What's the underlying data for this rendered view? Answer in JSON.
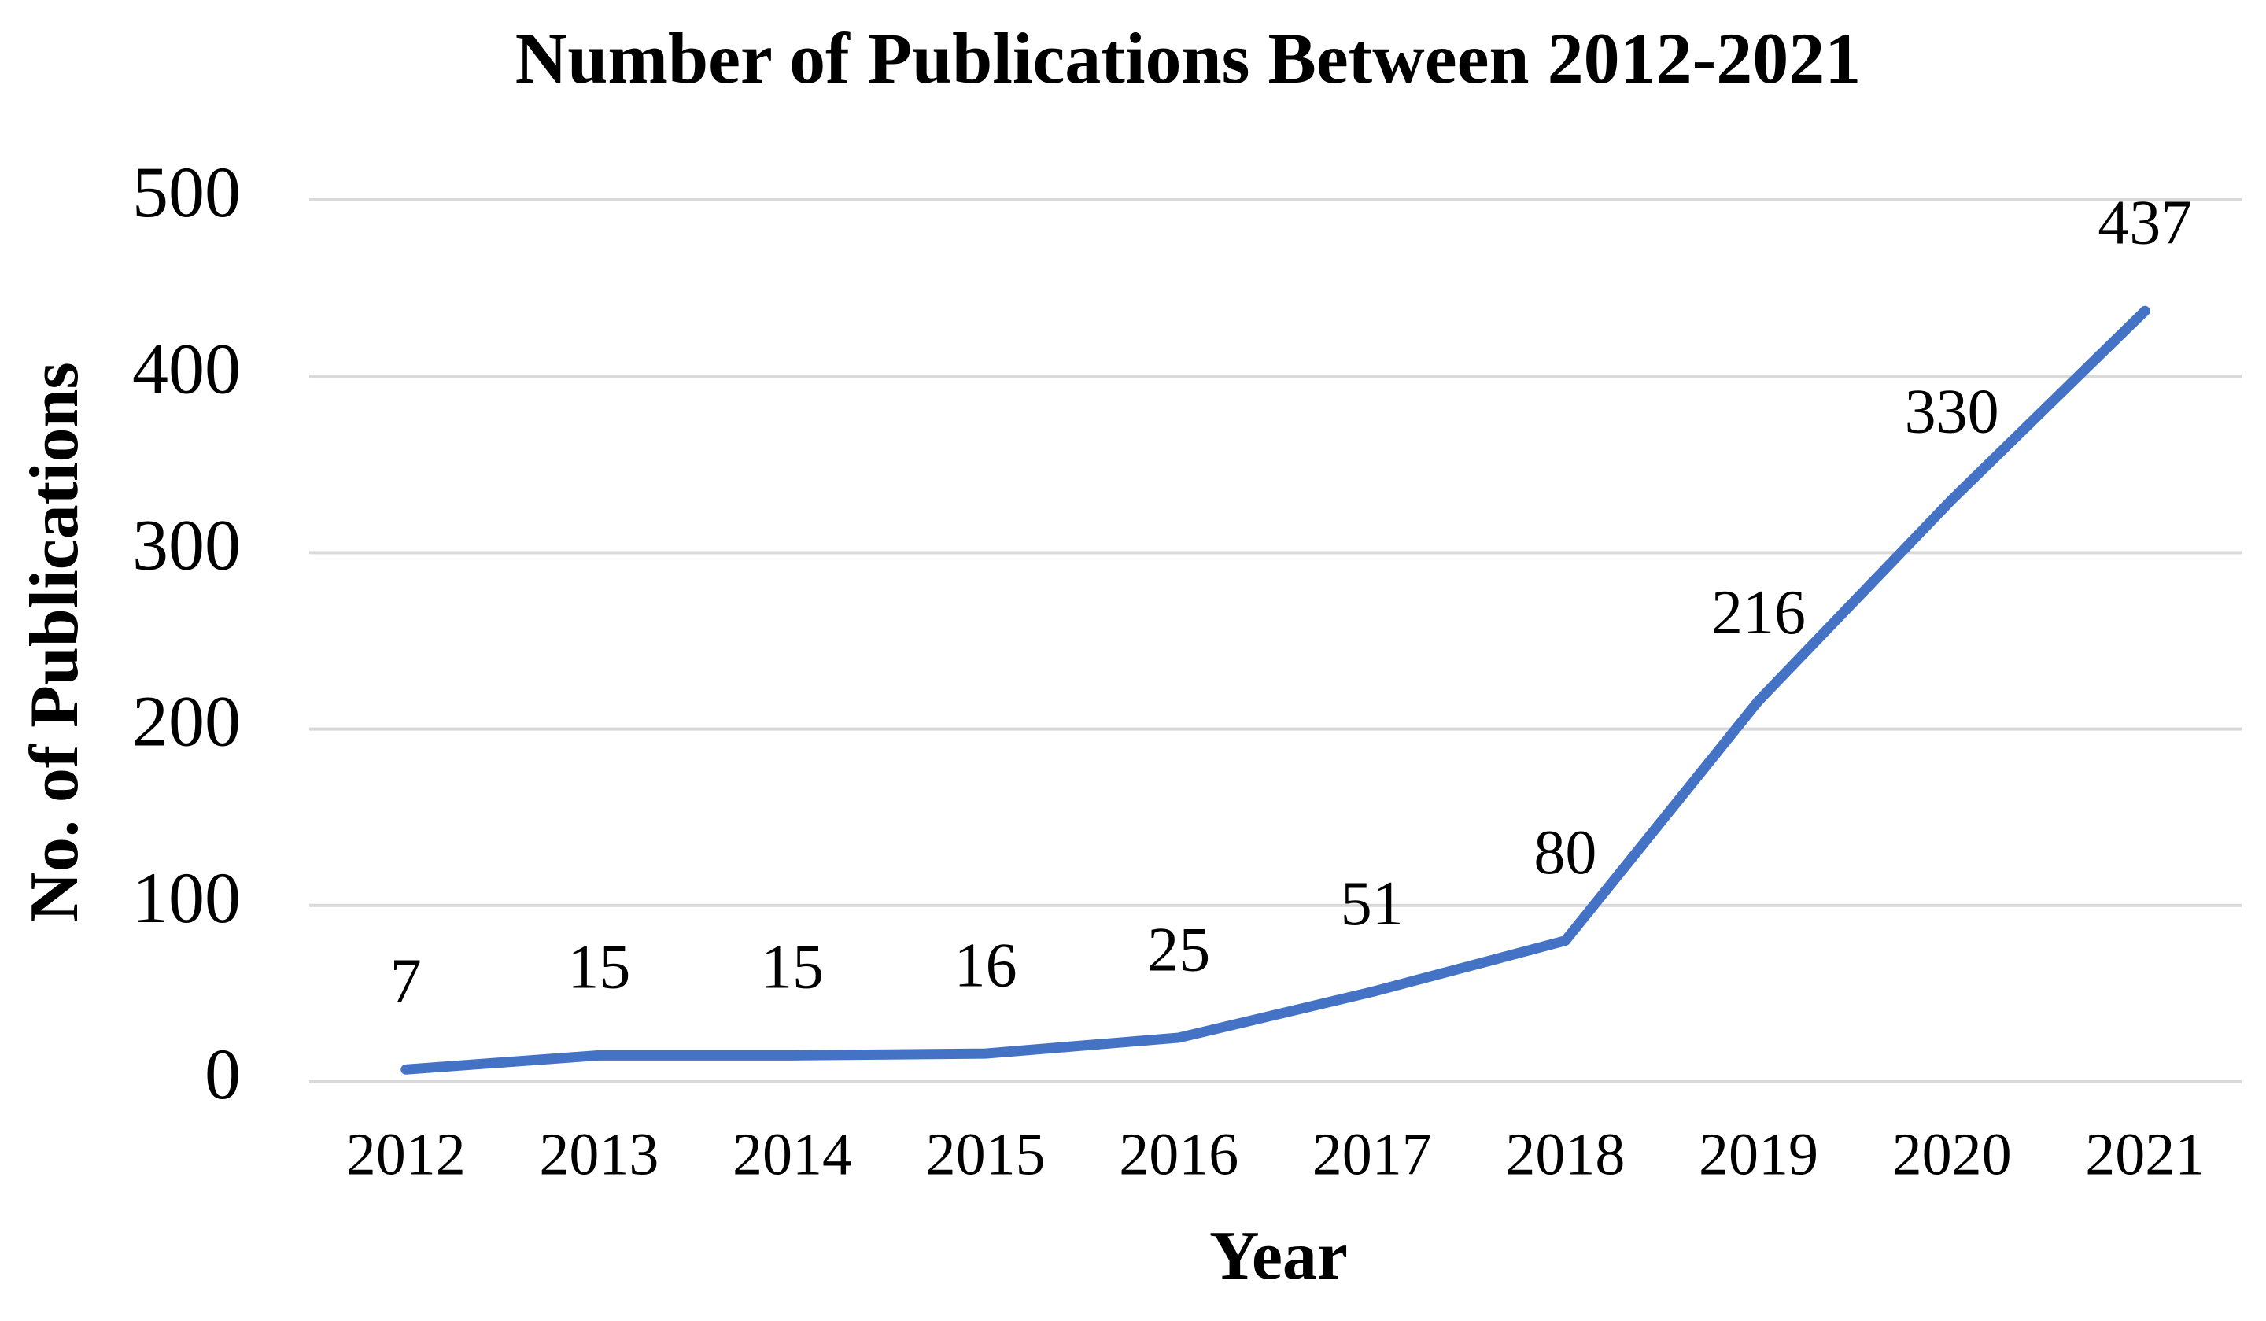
{
  "chart_data": {
    "type": "line",
    "title": "Number of Publications Between 2012-2021",
    "x_label": "Year",
    "y_label": "No. of Publications",
    "categories": [
      "2012",
      "2013",
      "2014",
      "2015",
      "2016",
      "2017",
      "2018",
      "2019",
      "2020",
      "2021"
    ],
    "values": [
      7,
      15,
      15,
      16,
      25,
      51,
      80,
      216,
      330,
      437
    ],
    "color": "#4472c4",
    "ylim": [
      0,
      500
    ],
    "yticks": [
      0,
      100,
      200,
      300,
      400,
      500
    ],
    "grid": true
  }
}
